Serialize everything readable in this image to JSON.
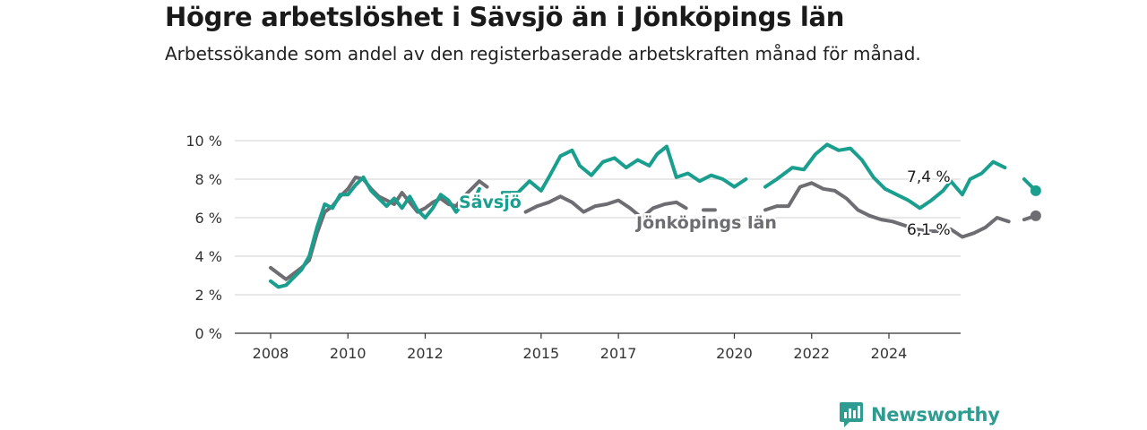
{
  "title": "Högre arbetslöshet i Sävsjö än i Jönköpings län",
  "subtitle": "Arbetssökande som andel av den registerbaserade arbetskraften månad för månad.",
  "brand": "Newsworthy",
  "colors": {
    "savsjo": "#1a9e8e",
    "lan": "#6d6d72",
    "grid": "#d9d9d9",
    "axis": "#333333"
  },
  "chart_data": {
    "type": "line",
    "ylim": [
      0,
      10
    ],
    "yticks": [
      "0 %",
      "2 %",
      "4 %",
      "6 %",
      "8 %",
      "10 %"
    ],
    "xticks": [
      "2008",
      "2010",
      "2012",
      "2015",
      "2017",
      "2020",
      "2022",
      "2024"
    ],
    "grid": true,
    "series": [
      {
        "name": "Sävsjö",
        "end_label": "7,4 %",
        "points": [
          [
            2008.0,
            2.7
          ],
          [
            2008.2,
            2.4
          ],
          [
            2008.4,
            2.5
          ],
          [
            2008.6,
            2.9
          ],
          [
            2008.8,
            3.3
          ],
          [
            2009.0,
            4.0
          ],
          [
            2009.2,
            5.5
          ],
          [
            2009.4,
            6.7
          ],
          [
            2009.6,
            6.5
          ],
          [
            2009.8,
            7.2
          ],
          [
            2010.0,
            7.2
          ],
          [
            2010.2,
            7.7
          ],
          [
            2010.4,
            8.1
          ],
          [
            2010.6,
            7.4
          ],
          [
            2010.8,
            7.0
          ],
          [
            2011.0,
            6.6
          ],
          [
            2011.2,
            7.0
          ],
          [
            2011.4,
            6.5
          ],
          [
            2011.6,
            7.1
          ],
          [
            2011.8,
            6.4
          ],
          [
            2012.0,
            6.0
          ],
          [
            2012.2,
            6.5
          ],
          [
            2012.4,
            7.2
          ],
          [
            2012.6,
            6.9
          ],
          [
            2012.8,
            6.3
          ],
          [
            2013.0,
            6.8
          ],
          [
            2013.2,
            6.6
          ],
          [
            2013.4,
            7.5
          ]
        ]
      },
      {
        "name": "Sävsjö",
        "points": [
          [
            2014.0,
            7.3
          ],
          [
            2014.4,
            7.3
          ],
          [
            2014.7,
            7.9
          ],
          [
            2015.0,
            7.4
          ],
          [
            2015.2,
            8.1
          ],
          [
            2015.5,
            9.2
          ],
          [
            2015.8,
            9.5
          ],
          [
            2016.0,
            8.7
          ],
          [
            2016.3,
            8.2
          ],
          [
            2016.6,
            8.9
          ],
          [
            2016.9,
            9.1
          ],
          [
            2017.2,
            8.6
          ],
          [
            2017.5,
            9.0
          ],
          [
            2017.8,
            8.7
          ],
          [
            2018.0,
            9.3
          ],
          [
            2018.25,
            9.7
          ],
          [
            2018.5,
            8.1
          ],
          [
            2018.8,
            8.3
          ],
          [
            2019.1,
            7.9
          ],
          [
            2019.4,
            8.2
          ],
          [
            2019.7,
            8.0
          ],
          [
            2020.0,
            7.6
          ],
          [
            2020.3,
            8.0
          ]
        ]
      },
      {
        "name": "Sävsjö",
        "points": [
          [
            2020.8,
            7.6
          ],
          [
            2021.1,
            8.0
          ],
          [
            2021.5,
            8.6
          ],
          [
            2021.8,
            8.5
          ],
          [
            2022.1,
            9.3
          ],
          [
            2022.4,
            9.8
          ],
          [
            2022.7,
            9.5
          ],
          [
            2023.0,
            9.6
          ],
          [
            2023.3,
            9.0
          ],
          [
            2023.6,
            8.1
          ],
          [
            2023.9,
            7.5
          ],
          [
            2024.2,
            7.2
          ],
          [
            2024.5,
            6.9
          ],
          [
            2024.8,
            6.5
          ],
          [
            2025.1,
            6.9
          ],
          [
            2025.4,
            7.4
          ],
          [
            2025.6,
            7.9
          ],
          [
            2025.9,
            7.2
          ],
          [
            2026.1,
            8.0
          ],
          [
            2026.4,
            8.3
          ],
          [
            2026.7,
            8.9
          ],
          [
            2027.0,
            8.6
          ]
        ]
      },
      {
        "name": "Sävsjö",
        "points": [
          [
            2027.5,
            8.0
          ],
          [
            2027.8,
            7.4
          ]
        ]
      },
      {
        "name": "Jönköpings län",
        "end_label": "6,1 %",
        "points": [
          [
            2008.0,
            3.4
          ],
          [
            2008.2,
            3.1
          ],
          [
            2008.4,
            2.8
          ],
          [
            2008.6,
            3.1
          ],
          [
            2008.8,
            3.4
          ],
          [
            2009.0,
            3.8
          ],
          [
            2009.2,
            5.2
          ],
          [
            2009.4,
            6.3
          ],
          [
            2009.6,
            6.6
          ],
          [
            2009.8,
            7.1
          ],
          [
            2010.0,
            7.5
          ],
          [
            2010.2,
            8.1
          ],
          [
            2010.4,
            8.0
          ],
          [
            2010.6,
            7.5
          ],
          [
            2010.8,
            7.1
          ],
          [
            2011.0,
            6.9
          ],
          [
            2011.2,
            6.7
          ],
          [
            2011.4,
            7.3
          ],
          [
            2011.6,
            6.8
          ],
          [
            2011.8,
            6.3
          ],
          [
            2012.0,
            6.5
          ],
          [
            2012.2,
            6.8
          ],
          [
            2012.4,
            7.0
          ],
          [
            2012.6,
            6.7
          ],
          [
            2012.8,
            6.6
          ],
          [
            2013.0,
            7.1
          ],
          [
            2013.2,
            7.5
          ],
          [
            2013.4,
            7.9
          ],
          [
            2013.6,
            7.6
          ]
        ]
      },
      {
        "name": "Jönköpings län",
        "points": [
          [
            2014.6,
            6.3
          ],
          [
            2014.9,
            6.6
          ],
          [
            2015.2,
            6.8
          ],
          [
            2015.5,
            7.1
          ],
          [
            2015.8,
            6.8
          ],
          [
            2016.1,
            6.3
          ],
          [
            2016.4,
            6.6
          ],
          [
            2016.7,
            6.7
          ],
          [
            2017.0,
            6.9
          ],
          [
            2017.3,
            6.5
          ],
          [
            2017.6,
            6.0
          ],
          [
            2017.9,
            6.5
          ],
          [
            2018.2,
            6.7
          ],
          [
            2018.5,
            6.8
          ],
          [
            2018.75,
            6.5
          ]
        ]
      },
      {
        "name": "Jönköpings län",
        "points": [
          [
            2019.2,
            6.4
          ],
          [
            2019.5,
            6.4
          ]
        ]
      },
      {
        "name": "Jönköpings län",
        "points": [
          [
            2020.8,
            6.4
          ],
          [
            2021.1,
            6.6
          ],
          [
            2021.4,
            6.6
          ],
          [
            2021.7,
            7.6
          ],
          [
            2022.0,
            7.8
          ],
          [
            2022.3,
            7.5
          ],
          [
            2022.6,
            7.4
          ],
          [
            2022.9,
            7.0
          ],
          [
            2023.2,
            6.4
          ],
          [
            2023.5,
            6.1
          ],
          [
            2023.8,
            5.9
          ],
          [
            2024.1,
            5.8
          ],
          [
            2024.4,
            5.6
          ],
          [
            2024.7,
            5.4
          ],
          [
            2025.0,
            5.3
          ],
          [
            2025.3,
            5.3
          ],
          [
            2025.6,
            5.4
          ],
          [
            2025.9,
            5.0
          ],
          [
            2026.2,
            5.2
          ],
          [
            2026.5,
            5.5
          ],
          [
            2026.8,
            6.0
          ],
          [
            2027.1,
            5.8
          ]
        ]
      },
      {
        "name": "Jönköpings län",
        "points": [
          [
            2027.5,
            5.9
          ],
          [
            2027.8,
            6.1
          ]
        ]
      }
    ],
    "labels": [
      {
        "text": "Sävsjö",
        "series": "savsjo"
      },
      {
        "text": "Jönköpings län",
        "series": "lan"
      }
    ]
  }
}
